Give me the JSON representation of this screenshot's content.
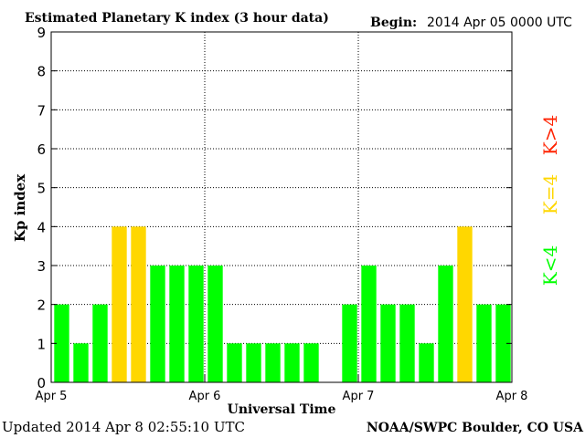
{
  "chart_data": {
    "type": "bar",
    "title": "Estimated Planetary K index (3 hour data)",
    "begin_label": "Begin:",
    "begin_value": "2014 Apr 05 0000 UTC",
    "ylabel": "Kp index",
    "xlabel": "Universal Time",
    "ylim": [
      0,
      9
    ],
    "yticks": [
      "0",
      "1",
      "2",
      "3",
      "4",
      "5",
      "6",
      "7",
      "8",
      "9"
    ],
    "xticks": [
      "Apr 5",
      "Apr 6",
      "Apr 7",
      "Apr 8"
    ],
    "grid": true,
    "values": [
      2,
      1,
      2,
      4,
      4,
      3,
      3,
      3,
      3,
      1,
      1,
      1,
      1,
      1,
      0,
      2,
      3,
      2,
      2,
      1,
      3,
      4,
      2,
      2
    ],
    "legend": {
      "low": "K<4",
      "equal": "K=4",
      "high": "K>4"
    },
    "colors": {
      "low": "#00ff00",
      "equal": "#ffd700",
      "high": "#ff2200"
    }
  },
  "footer": {
    "updated": "Updated 2014 Apr  8 02:55:10 UTC",
    "source": "NOAA/SWPC Boulder, CO USA"
  }
}
